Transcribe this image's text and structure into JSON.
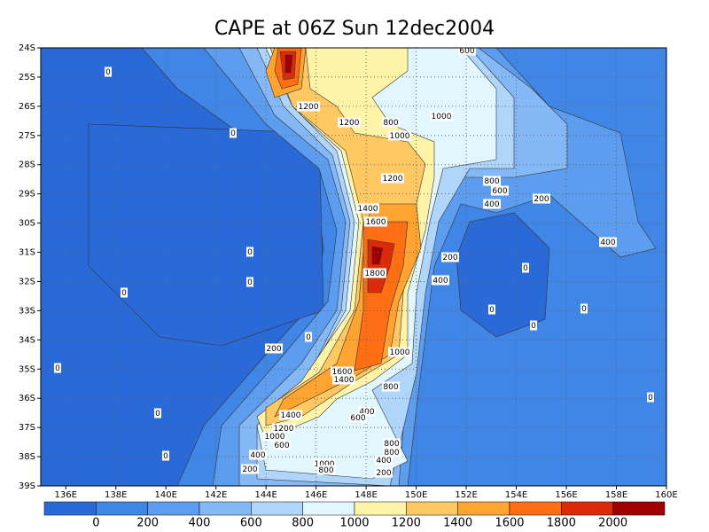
{
  "title": "CAPE at 06Z Sun 12dec2004",
  "map": {
    "xlim": [
      135,
      160
    ],
    "ylim": [
      -39,
      -24
    ],
    "xticks": [
      {
        "value": 136,
        "label": "136E"
      },
      {
        "value": 138,
        "label": "138E"
      },
      {
        "value": 140,
        "label": "140E"
      },
      {
        "value": 142,
        "label": "142E"
      },
      {
        "value": 144,
        "label": "144E"
      },
      {
        "value": 146,
        "label": "146E"
      },
      {
        "value": 148,
        "label": "148E"
      },
      {
        "value": 150,
        "label": "150E"
      },
      {
        "value": 152,
        "label": "152E"
      },
      {
        "value": 154,
        "label": "154E"
      },
      {
        "value": 156,
        "label": "156E"
      },
      {
        "value": 158,
        "label": "158E"
      },
      {
        "value": 160,
        "label": "160E"
      }
    ],
    "yticks": [
      {
        "value": -24,
        "label": "24S"
      },
      {
        "value": -25,
        "label": "25S"
      },
      {
        "value": -26,
        "label": "26S"
      },
      {
        "value": -27,
        "label": "27S"
      },
      {
        "value": -28,
        "label": "28S"
      },
      {
        "value": -29,
        "label": "29S"
      },
      {
        "value": -30,
        "label": "30S"
      },
      {
        "value": -31,
        "label": "31S"
      },
      {
        "value": -32,
        "label": "32S"
      },
      {
        "value": -33,
        "label": "33S"
      },
      {
        "value": -34,
        "label": "34S"
      },
      {
        "value": -35,
        "label": "35S"
      },
      {
        "value": -36,
        "label": "36S"
      },
      {
        "value": -37,
        "label": "37S"
      },
      {
        "value": -38,
        "label": "38S"
      },
      {
        "value": -39,
        "label": "39S"
      }
    ],
    "grid": true
  },
  "contour_labels": [
    600,
    0,
    1200,
    1000,
    1200,
    800,
    0,
    1000,
    1200,
    800,
    600,
    400,
    200,
    1400,
    1600,
    400,
    0,
    200,
    0,
    1800,
    400,
    0,
    0,
    0,
    0,
    0,
    0,
    200,
    1000,
    0,
    1600,
    1400,
    800,
    0,
    0,
    400,
    600,
    1400,
    1200,
    1000,
    600,
    800,
    800,
    400,
    400,
    0,
    1000,
    200,
    800,
    200
  ],
  "colorbar": {
    "levels": [
      0,
      200,
      400,
      600,
      800,
      1000,
      1200,
      1400,
      1600,
      1800,
      2000
    ],
    "colors": [
      "#2a6ad8",
      "#3f86e6",
      "#5c9df0",
      "#85b8f6",
      "#b0d5fb",
      "#e2f7fd",
      "#fff3a8",
      "#ffc862",
      "#ffa331",
      "#ff6e12",
      "#dc2a0a",
      "#a00000"
    ]
  }
}
